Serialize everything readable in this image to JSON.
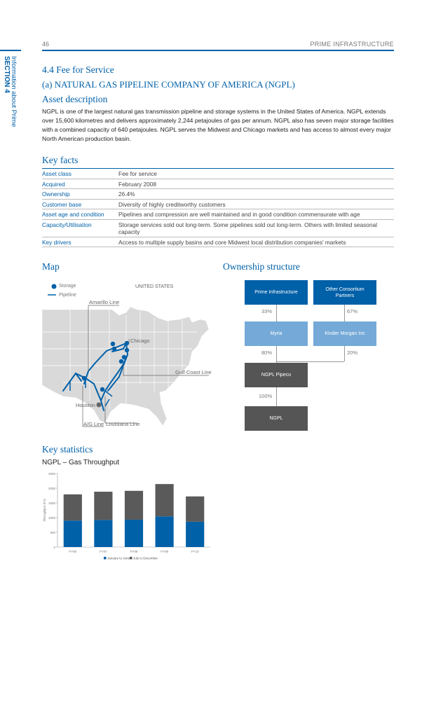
{
  "header": {
    "page_number": "46",
    "running_head": "PRIME INFRASTRUCTURE",
    "side_section": "SECTION 4",
    "side_info": "Information about Prime"
  },
  "section": {
    "heading": "4.4 Fee for Service",
    "subheading": "(a)  NATURAL GAS PIPELINE COMPANY OF AMERICA (NGPL)",
    "asset_heading": "Asset description",
    "asset_text": "NGPL is one of the largest natural gas transmission pipeline and storage systems in the United States of America. NGPL extends over 15,600 kilometres and delivers approximately 2,244 petajoules of gas per annum. NGPL also has seven major storage facilities with a combined capacity of 640 petajoules. NGPL serves the Midwest and Chicago markets and has access to almost every major North American production basin."
  },
  "key_facts": {
    "heading": "Key facts",
    "rows": [
      {
        "label": "Asset class",
        "value": "Fee for service"
      },
      {
        "label": "Acquired",
        "value": "February 2008"
      },
      {
        "label": "Ownership",
        "value": "26.4%"
      },
      {
        "label": "Customer base",
        "value": "Diversity of highly creditworthy customers"
      },
      {
        "label": "Asset age and condition",
        "value": "Pipelines and compression are well maintained and in good condition commensurate with age"
      },
      {
        "label": "Capacity/Utilisation",
        "value": "Storage services sold out long-term. Some pipelines sold out long-term. Others with limited seasonal capacity"
      },
      {
        "label": "Key drivers",
        "value": "Access to multiple supply basins and core Midwest local distribution companies' markets"
      }
    ]
  },
  "map": {
    "heading": "Map",
    "legend_storage": "Storage",
    "legend_pipeline": "Pipeline",
    "country": "UNITED STATES",
    "labels": {
      "amarillo": "Amarillo Line",
      "chicago": "Chicago",
      "gulf": "Gulf Coast Line",
      "houston": "Houston",
      "ag": "A/G Line",
      "louisiana": "Louisiana Line"
    },
    "colors": {
      "land": "#d9d9d9",
      "pipeline": "#0060a8",
      "state_border": "#ffffff"
    }
  },
  "ownership": {
    "heading": "Ownership structure",
    "boxes": {
      "prime": "Prime Infrastructure",
      "consortium": "Other Consortium Partners",
      "myria": "Myria",
      "kinder": "Kinder Morgan Inc",
      "pipeco": "NGPL Pipeco",
      "ngpl": "NGPL"
    },
    "pcts": {
      "prime": "33%",
      "consortium": "67%",
      "myria": "80%",
      "kinder": "20%",
      "pipeco": "100%"
    }
  },
  "stats": {
    "heading": "Key statistics",
    "chart_title": "NGPL – Gas Throughput"
  },
  "chart_data": {
    "type": "bar",
    "stacked": true,
    "title": "NGPL – Gas Throughput",
    "xlabel": "",
    "ylabel": "Throughput (PJ)",
    "categories": [
      "FY06",
      "FY07",
      "FY08",
      "FY09",
      "FY10"
    ],
    "series": [
      {
        "name": "January to June",
        "values": [
          900,
          920,
          930,
          1040,
          860
        ],
        "color": "#0060a8"
      },
      {
        "name": "July to December",
        "values": [
          890,
          960,
          980,
          1100,
          860
        ],
        "color": "#5a5a5a"
      }
    ],
    "ylim": [
      0,
      2500
    ],
    "yticks": [
      "0",
      "500",
      "1000",
      "1500",
      "2000",
      "2500"
    ],
    "grid": false,
    "legend": "bottom"
  }
}
